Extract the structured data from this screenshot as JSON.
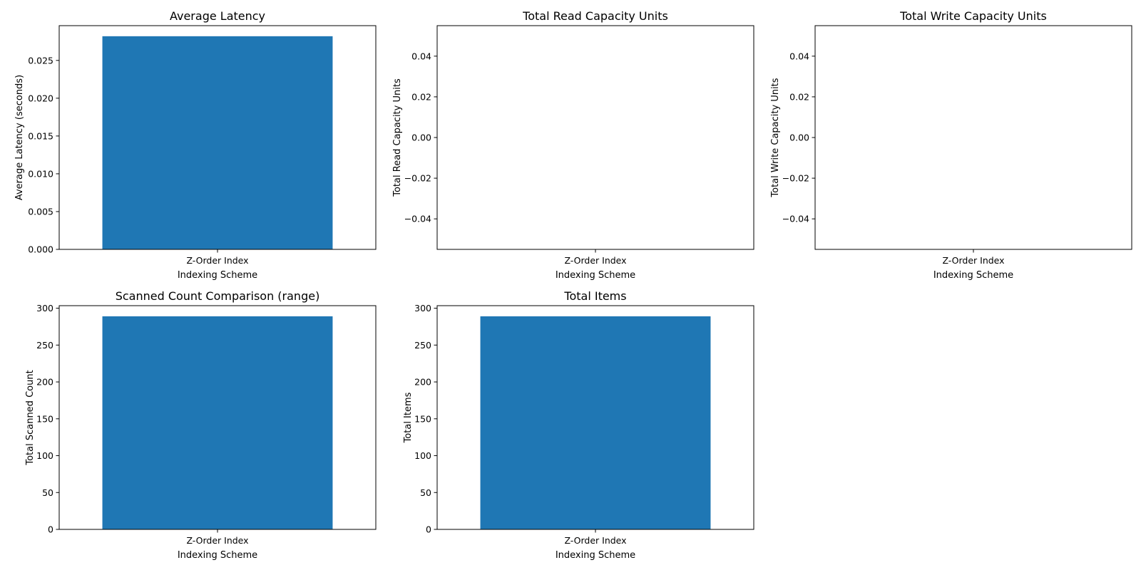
{
  "chart_data": [
    {
      "type": "bar",
      "title": "Average Latency",
      "xlabel": "Indexing Scheme",
      "ylabel": "Average Latency (seconds)",
      "categories": [
        "Z-Order Index"
      ],
      "values": [
        0.0282
      ],
      "ylim": [
        0,
        0.0296
      ],
      "yticks": [
        0.0,
        0.005,
        0.01,
        0.015,
        0.02,
        0.025
      ],
      "ytick_labels": [
        "0.000",
        "0.005",
        "0.010",
        "0.015",
        "0.020",
        "0.025"
      ],
      "bar_color": "#1f77b4",
      "grid": false
    },
    {
      "type": "bar",
      "title": "Total Read Capacity Units",
      "xlabel": "Indexing Scheme",
      "ylabel": "Total Read Capacity Units",
      "categories": [
        "Z-Order Index"
      ],
      "values": [
        0
      ],
      "ylim": [
        -0.055,
        0.055
      ],
      "yticks": [
        -0.04,
        -0.02,
        0.0,
        0.02,
        0.04
      ],
      "ytick_labels": [
        "−0.04",
        "−0.02",
        "0.00",
        "0.02",
        "0.04"
      ],
      "bar_color": "#1f77b4",
      "grid": false
    },
    {
      "type": "bar",
      "title": "Total Write Capacity Units",
      "xlabel": "Indexing Scheme",
      "ylabel": "Total Write Capacity Units",
      "categories": [
        "Z-Order Index"
      ],
      "values": [
        0
      ],
      "ylim": [
        -0.055,
        0.055
      ],
      "yticks": [
        -0.04,
        -0.02,
        0.0,
        0.02,
        0.04
      ],
      "ytick_labels": [
        "−0.04",
        "−0.02",
        "0.00",
        "0.02",
        "0.04"
      ],
      "bar_color": "#1f77b4",
      "grid": false
    },
    {
      "type": "bar",
      "title": "Scanned Count Comparison (range)",
      "xlabel": "Indexing Scheme",
      "ylabel": "Total Scanned Count",
      "categories": [
        "Z-Order Index"
      ],
      "values": [
        289
      ],
      "ylim": [
        0,
        303.45
      ],
      "yticks": [
        0,
        50,
        100,
        150,
        200,
        250,
        300
      ],
      "ytick_labels": [
        "0",
        "50",
        "100",
        "150",
        "200",
        "250",
        "300"
      ],
      "bar_color": "#1f77b4",
      "grid": false
    },
    {
      "type": "bar",
      "title": "Total Items",
      "xlabel": "Indexing Scheme",
      "ylabel": "Total Items",
      "categories": [
        "Z-Order Index"
      ],
      "values": [
        289
      ],
      "ylim": [
        0,
        303.45
      ],
      "yticks": [
        0,
        50,
        100,
        150,
        200,
        250,
        300
      ],
      "ytick_labels": [
        "0",
        "50",
        "100",
        "150",
        "200",
        "250",
        "300"
      ],
      "bar_color": "#1f77b4",
      "grid": false
    }
  ]
}
